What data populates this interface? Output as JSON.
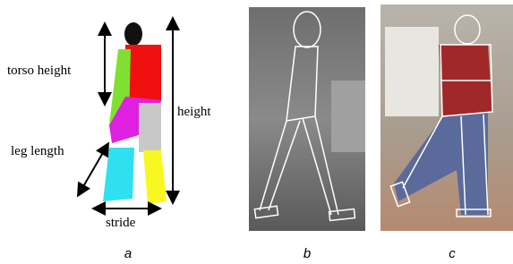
{
  "panels": [
    {
      "label": "a",
      "annotations": {
        "torso": "torso height",
        "leg": "leg length",
        "stride": "stride",
        "height": "height"
      }
    },
    {
      "label": "b"
    },
    {
      "label": "c"
    }
  ]
}
